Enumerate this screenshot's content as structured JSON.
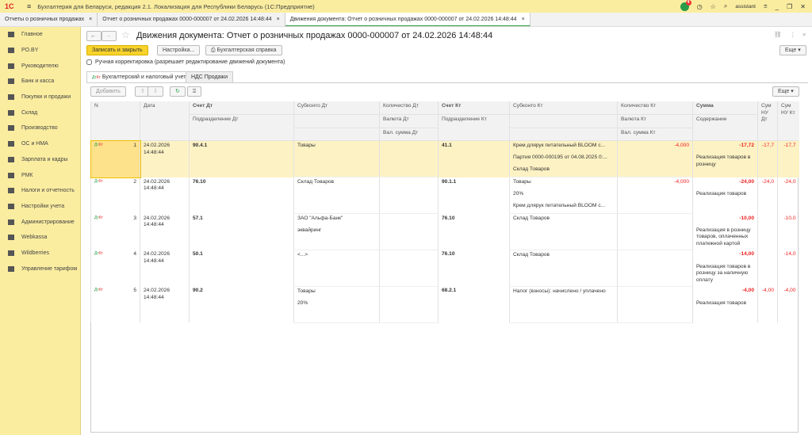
{
  "app": {
    "logo": "1С",
    "title": "Бухгалтерия для Беларуси, редакция 2.1. Локализация для Республики Беларусь   (1С:Предприятие)",
    "user": "assistant",
    "notifications": "4"
  },
  "window_tabs": [
    {
      "label": "Отчеты о розничных продажах"
    },
    {
      "label": "Отчет о розничных продажах 0000-000007 от 24.02.2026 14:48:44"
    },
    {
      "label": "Движения документа: Отчет о розничных продажах 0000-000007 от 24.02.2026 14:48:44",
      "active": true
    }
  ],
  "sidebar": {
    "items": [
      {
        "label": "Главное"
      },
      {
        "label": "PO.BY"
      },
      {
        "label": "Руководителю"
      },
      {
        "label": "Банк и касса"
      },
      {
        "label": "Покупки и продажи"
      },
      {
        "label": "Склад"
      },
      {
        "label": "Производство"
      },
      {
        "label": "ОС и НМА"
      },
      {
        "label": "Зарплата и кадры"
      },
      {
        "label": "РМК"
      },
      {
        "label": "Налоги и отчетность"
      },
      {
        "label": "Настройки учета"
      },
      {
        "label": "Администрирование"
      },
      {
        "label": "Webkassa"
      },
      {
        "label": "Wildberries"
      },
      {
        "label": "Управление тарифом"
      }
    ]
  },
  "form": {
    "title": "Движения документа: Отчет о розничных продажах 0000-000007 от 24.02.2026 14:48:44",
    "save_close": "Записать и закрыть",
    "settings": "Настройка...",
    "report": "Бухгалтерская справка",
    "more": "Еще",
    "manual": "Ручная корректировка (разрешает редактирование движений документа)",
    "manual_checked": false,
    "tabs": [
      {
        "label": "Бухгалтерский и налоговый учет",
        "active": true
      },
      {
        "label": "НДС Продажи"
      }
    ],
    "add": "Добавить",
    "table_more": "Еще"
  },
  "colors": {
    "accent": "#f8d32b",
    "negative": "#e22222",
    "selected_row": "#fdf2c4"
  },
  "table": {
    "headers": {
      "n": "N",
      "date": "Дата",
      "dt": "Счет Дт",
      "dt_div": "Подразделение Дт",
      "sub_dt": "Субконто Дт",
      "qty_dt": "Количество Дт",
      "cur_dt": "Валюта Дт",
      "vsum_dt": "Вал. сумма Дт",
      "kt": "Счет Кт",
      "kt_div": "Подразделение Кт",
      "sub_kt": "Субконто Кт",
      "qty_kt": "Количество Кт",
      "cur_kt": "Валюта Кт",
      "vsum_kt": "Вал. сумма Кт",
      "sum": "Сумма",
      "content": "Содержание",
      "nu_dt": "Сум НУ Дт",
      "nu_kt": "Сум НУ Кт"
    },
    "rows": [
      {
        "n": "1",
        "date": "24.02.2026",
        "time": "14:48:44",
        "dt": "90.4.1",
        "sub_dt": [
          "Товары",
          "",
          ""
        ],
        "kt": "41.1",
        "sub_kt": [
          "Крем длярук питательный BLOOM с...",
          "Партия 0000-000195 от 04.08.2025 0:...",
          "Склад Товаров"
        ],
        "qty_kt": "-4,000",
        "sum": "-17,72",
        "content": "Реализация товаров в розницу",
        "nu_dt": "-17,7",
        "nu_kt": "-17,7",
        "selected": true
      },
      {
        "n": "2",
        "date": "24.02.2026",
        "time": "14:48:44",
        "dt": "76.10",
        "sub_dt": [
          "Склад Товаров",
          "",
          ""
        ],
        "kt": "90.1.1",
        "sub_kt": [
          "Товары",
          "20%",
          "Крем длярук питательный BLOOM с..."
        ],
        "qty_kt": "-4,000",
        "sum": "-24,00",
        "content": "Реализация товаров",
        "nu_dt": "-24,0",
        "nu_kt": "-24,0"
      },
      {
        "n": "3",
        "date": "24.02.2026",
        "time": "14:48:44",
        "dt": "57.1",
        "sub_dt": [
          "ЗАО \"Альфа-Банк\"",
          "эквайринг",
          ""
        ],
        "kt": "76.10",
        "sub_kt": [
          "Склад Товаров",
          "",
          ""
        ],
        "qty_kt": "",
        "sum": "-10,00",
        "content": "Реализация в розницу товаров, оплаченных платежной картой",
        "nu_dt": "",
        "nu_kt": "-10,0"
      },
      {
        "n": "4",
        "date": "24.02.2026",
        "time": "14:48:44",
        "dt": "50.1",
        "sub_dt": [
          "<...>",
          "",
          ""
        ],
        "kt": "76.10",
        "sub_kt": [
          "Склад Товаров",
          "",
          ""
        ],
        "qty_kt": "",
        "sum": "-14,00",
        "content": "Реализация товаров в розницу за наличную оплату",
        "nu_dt": "",
        "nu_kt": "-14,0"
      },
      {
        "n": "5",
        "date": "24.02.2026",
        "time": "14:48:44",
        "dt": "90.2",
        "sub_dt": [
          "Товары",
          "20%",
          ""
        ],
        "kt": "68.2.1",
        "sub_kt": [
          "Налог (взносы): начислено / уплачено",
          "",
          ""
        ],
        "qty_kt": "",
        "sum": "-4,00",
        "content": "Реализация товаров",
        "nu_dt": "-4,00",
        "nu_kt": "-4,00"
      }
    ]
  }
}
